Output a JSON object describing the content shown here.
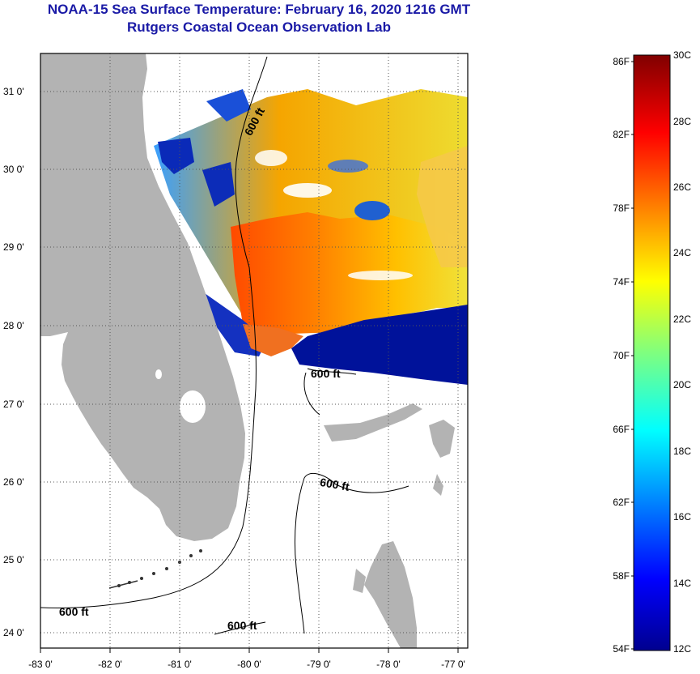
{
  "title": {
    "line1": "NOAA-15 Sea Surface Temperature:  February 16, 2020 1216 GMT",
    "line2": "Rutgers Coastal Ocean Observation Lab"
  },
  "map": {
    "lon_labels": [
      "-83 0'",
      "-82 0'",
      "-81 0'",
      "-80 0'",
      "-79 0'",
      "-78 0'",
      "-77 0'"
    ],
    "lat_labels": [
      "31 0'",
      "30 0'",
      "29 0'",
      "28 0'",
      "27 0'",
      "26 0'",
      "25 0'",
      "24 0'"
    ],
    "contour_label": "600 ft",
    "colors": {
      "land": "#b3b3b3",
      "grid": "#555555"
    }
  },
  "colorbar": {
    "f_labels": [
      "86F",
      "82F",
      "78F",
      "74F",
      "70F",
      "66F",
      "62F",
      "58F",
      "54F"
    ],
    "c_labels": [
      "30C",
      "28C",
      "26C",
      "24C",
      "22C",
      "20C",
      "18C",
      "16C",
      "14C",
      "12C"
    ]
  }
}
